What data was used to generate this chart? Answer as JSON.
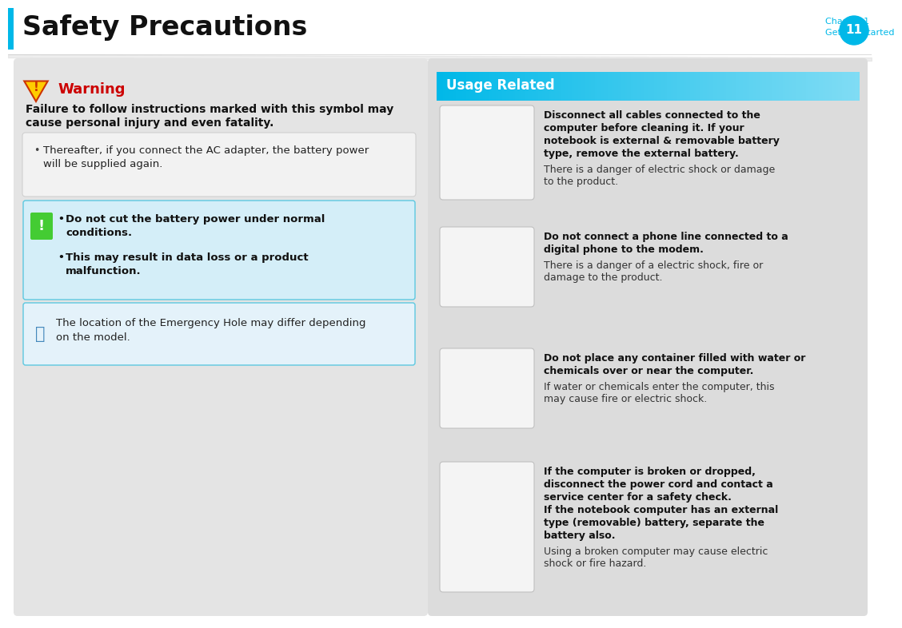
{
  "page_bg": "#ffffff",
  "header_title": "Safety Precautions",
  "header_bar_color": "#00b8e8",
  "chapter_text": "Chapter 1",
  "getting_started_text": "Getting Started",
  "chapter_color": "#00b8e8",
  "page_num": "11",
  "left_bg": "#e4e4e4",
  "right_bg": "#dcdcdc",
  "warning_color": "#cc0000",
  "warning_title": "Warning",
  "warning_bold_line1": "Failure to follow instructions marked with this symbol may",
  "warning_bold_line2": "cause personal injury and even fatality.",
  "bullet_line1": "Thereafter, if you connect the AC adapter, the battery power",
  "bullet_line2": "will be supplied again.",
  "caution_bg": "#d4eef8",
  "caution_border": "#5cc8e0",
  "caution_b1_line1": "Do not cut the battery power under normal",
  "caution_b1_line2": "conditions.",
  "caution_b2_line1": "This may result in data loss or a product",
  "caution_b2_line2": "malfunction.",
  "note_bg": "#e4f2fa",
  "note_border": "#5cc8e0",
  "note_line1": "The location of the Emergency Hole may differ depending",
  "note_line2": "on the model.",
  "usage_header": "Usage Related",
  "usage_header_bg1": "#00b8e8",
  "usage_header_bg2": "#80dcf4",
  "usage_header_text_color": "#ffffff",
  "items": [
    {
      "bold_lines": [
        "Disconnect all cables connected to the",
        "computer before cleaning it. If your",
        "notebook is external & removable battery",
        "type, remove the external battery."
      ],
      "normal_lines": [
        "There is a danger of electric shock or damage",
        "to the product."
      ]
    },
    {
      "bold_lines": [
        "Do not connect a phone line connected to a",
        "digital phone to the modem."
      ],
      "normal_lines": [
        "There is a danger of a electric shock, fire or",
        "damage to the product."
      ]
    },
    {
      "bold_lines": [
        "Do not place any container filled with water or",
        "chemicals over or near the computer."
      ],
      "normal_lines": [
        "If water or chemicals enter the computer, this",
        "may cause fire or electric shock."
      ]
    },
    {
      "bold_lines": [
        "If the computer is broken or dropped,",
        "disconnect the power cord and contact a",
        "service center for a safety check.",
        "If the notebook computer has an external",
        "type (removable) battery, separate the",
        "battery also."
      ],
      "normal_lines": [
        "Using a broken computer may cause electric",
        "shock or fire hazard."
      ]
    }
  ]
}
